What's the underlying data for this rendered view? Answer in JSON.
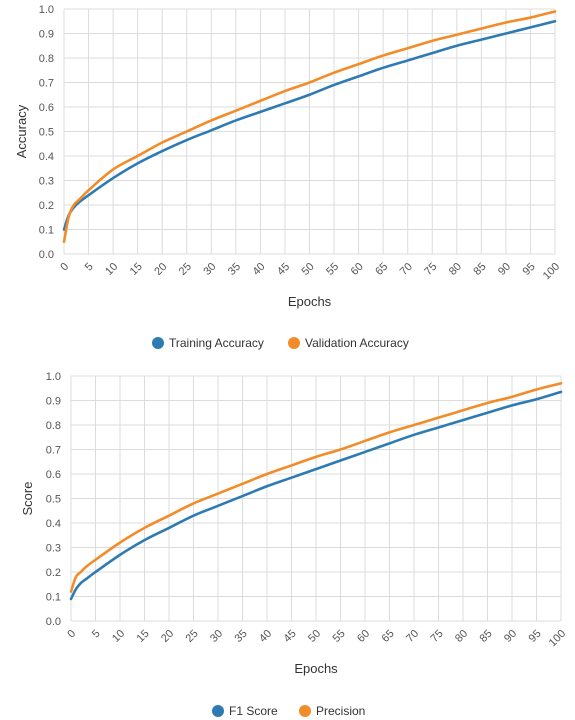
{
  "chart_data": [
    {
      "type": "line",
      "title": "",
      "xlabel": "Epochs",
      "ylabel": "Accuracy",
      "xlim": [
        0,
        100
      ],
      "ylim": [
        0,
        1.0
      ],
      "x_ticks": [
        0,
        5,
        10,
        15,
        20,
        25,
        30,
        35,
        40,
        45,
        50,
        55,
        60,
        65,
        70,
        75,
        80,
        85,
        90,
        95,
        100
      ],
      "y_ticks": [
        "0.0",
        "0.1",
        "0.2",
        "0.3",
        "0.4",
        "0.5",
        "0.6",
        "0.7",
        "0.8",
        "0.9",
        "1.0"
      ],
      "grid": true,
      "legend_position": "bottom",
      "x": [
        0,
        1,
        2,
        3,
        5,
        10,
        15,
        20,
        25,
        30,
        35,
        40,
        45,
        50,
        55,
        60,
        65,
        70,
        75,
        80,
        85,
        90,
        95,
        100
      ],
      "series": [
        {
          "name": "Training Accuracy",
          "color": "#2e7bb4",
          "values": [
            0.1,
            0.16,
            0.19,
            0.21,
            0.24,
            0.31,
            0.37,
            0.42,
            0.465,
            0.505,
            0.545,
            0.58,
            0.615,
            0.65,
            0.69,
            0.725,
            0.76,
            0.79,
            0.82,
            0.85,
            0.875,
            0.9,
            0.925,
            0.95
          ]
        },
        {
          "name": "Validation Accuracy",
          "color": "#f28c28",
          "values": [
            0.05,
            0.155,
            0.2,
            0.22,
            0.26,
            0.345,
            0.4,
            0.455,
            0.5,
            0.545,
            0.585,
            0.625,
            0.665,
            0.7,
            0.74,
            0.775,
            0.81,
            0.84,
            0.87,
            0.895,
            0.92,
            0.945,
            0.965,
            0.99
          ]
        }
      ]
    },
    {
      "type": "line",
      "title": "",
      "xlabel": "Epochs",
      "ylabel": "Score",
      "xlim": [
        0,
        100
      ],
      "ylim": [
        0,
        1.0
      ],
      "x_ticks": [
        0,
        5,
        10,
        15,
        20,
        25,
        30,
        35,
        40,
        45,
        50,
        55,
        60,
        65,
        70,
        75,
        80,
        85,
        90,
        95,
        100
      ],
      "y_ticks": [
        "0.0",
        "0.1",
        "0.2",
        "0.3",
        "0.4",
        "0.5",
        "0.6",
        "0.7",
        "0.8",
        "0.9",
        "1.0"
      ],
      "grid": true,
      "legend_position": "bottom",
      "x": [
        0,
        1,
        2,
        3,
        5,
        10,
        15,
        20,
        25,
        30,
        35,
        40,
        45,
        50,
        55,
        60,
        65,
        70,
        75,
        80,
        85,
        90,
        95,
        100
      ],
      "series": [
        {
          "name": "F1 Score",
          "color": "#2e7bb4",
          "values": [
            0.09,
            0.13,
            0.155,
            0.17,
            0.2,
            0.27,
            0.33,
            0.38,
            0.43,
            0.47,
            0.51,
            0.55,
            0.585,
            0.62,
            0.655,
            0.69,
            0.725,
            0.76,
            0.79,
            0.82,
            0.85,
            0.88,
            0.905,
            0.935
          ]
        },
        {
          "name": "Precision",
          "color": "#f28c28",
          "values": [
            0.12,
            0.18,
            0.2,
            0.22,
            0.25,
            0.32,
            0.38,
            0.43,
            0.48,
            0.52,
            0.56,
            0.6,
            0.635,
            0.67,
            0.7,
            0.735,
            0.77,
            0.8,
            0.83,
            0.86,
            0.89,
            0.915,
            0.945,
            0.97
          ]
        }
      ]
    }
  ]
}
